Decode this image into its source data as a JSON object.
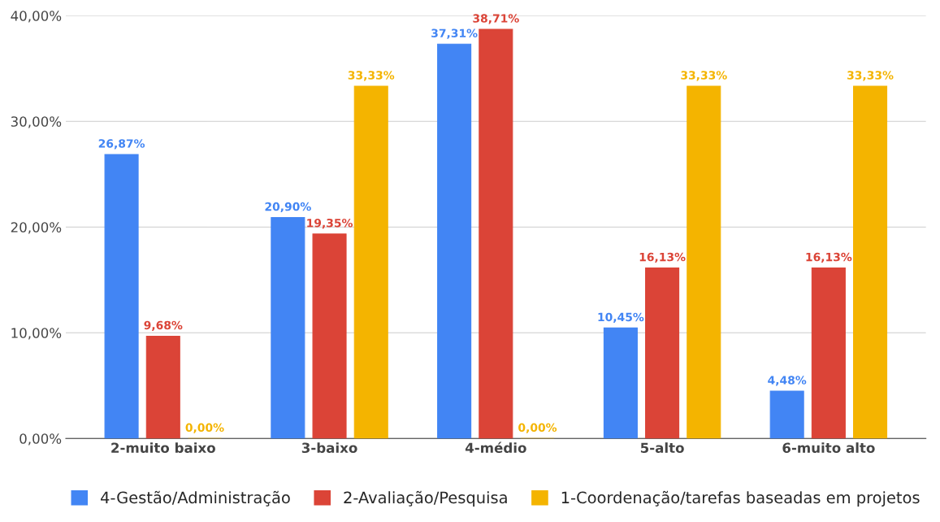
{
  "chart_data": {
    "type": "bar",
    "categories": [
      "2-muito baixo",
      "3-baixo",
      "4-médio",
      "5-alto",
      "6-muito alto"
    ],
    "series": [
      {
        "name": "4-Gestão/Administração",
        "color": "#4285f4",
        "values": [
          26.87,
          20.9,
          37.31,
          10.45,
          4.48
        ],
        "value_labels": [
          "26,87%",
          "20,90%",
          "37,31%",
          "10,45%",
          "4,48%"
        ]
      },
      {
        "name": "2-Avaliação/Pesquisa",
        "color": "#db4437",
        "values": [
          9.68,
          19.35,
          38.71,
          16.13,
          16.13
        ],
        "value_labels": [
          "9,68%",
          "19,35%",
          "38,71%",
          "16,13%",
          "16,13%"
        ]
      },
      {
        "name": "1-Coordenação/tarefas baseadas em projetos",
        "color": "#f4b400",
        "values": [
          0.0,
          33.33,
          0.0,
          33.33,
          33.33
        ],
        "value_labels": [
          "0,00%",
          "33,33%",
          "0,00%",
          "33,33%",
          "33,33%"
        ]
      }
    ],
    "ylim": [
      0,
      40
    ],
    "yticks": [
      {
        "value": 0,
        "label": "0,00%"
      },
      {
        "value": 10,
        "label": "10,00%"
      },
      {
        "value": 20,
        "label": "20,00%"
      },
      {
        "value": 30,
        "label": "30,00%"
      },
      {
        "value": 40,
        "label": "40,00%"
      }
    ],
    "grid": "y",
    "legend": "bottom"
  }
}
